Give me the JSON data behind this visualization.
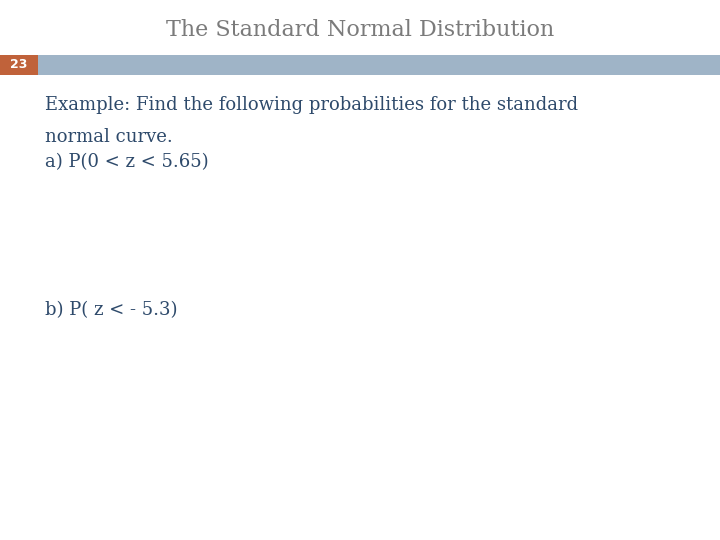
{
  "title": "The Standard Normal Distribution",
  "title_color": "#7B7B7B",
  "title_fontsize": 16,
  "slide_number": "23",
  "slide_number_bg": "#C0623A",
  "slide_number_color": "#FFFFFF",
  "header_bar_color": "#9FB4C7",
  "body_text_color": "#2E4A6B",
  "body_fontsize": 13,
  "background_color": "#FFFFFF",
  "line1": "Example: Find the following probabilities for the standard",
  "line2": "normal curve.",
  "line3": "a) P(0 < z < 5.65)",
  "line4": "b) P( z < - 5.3)"
}
